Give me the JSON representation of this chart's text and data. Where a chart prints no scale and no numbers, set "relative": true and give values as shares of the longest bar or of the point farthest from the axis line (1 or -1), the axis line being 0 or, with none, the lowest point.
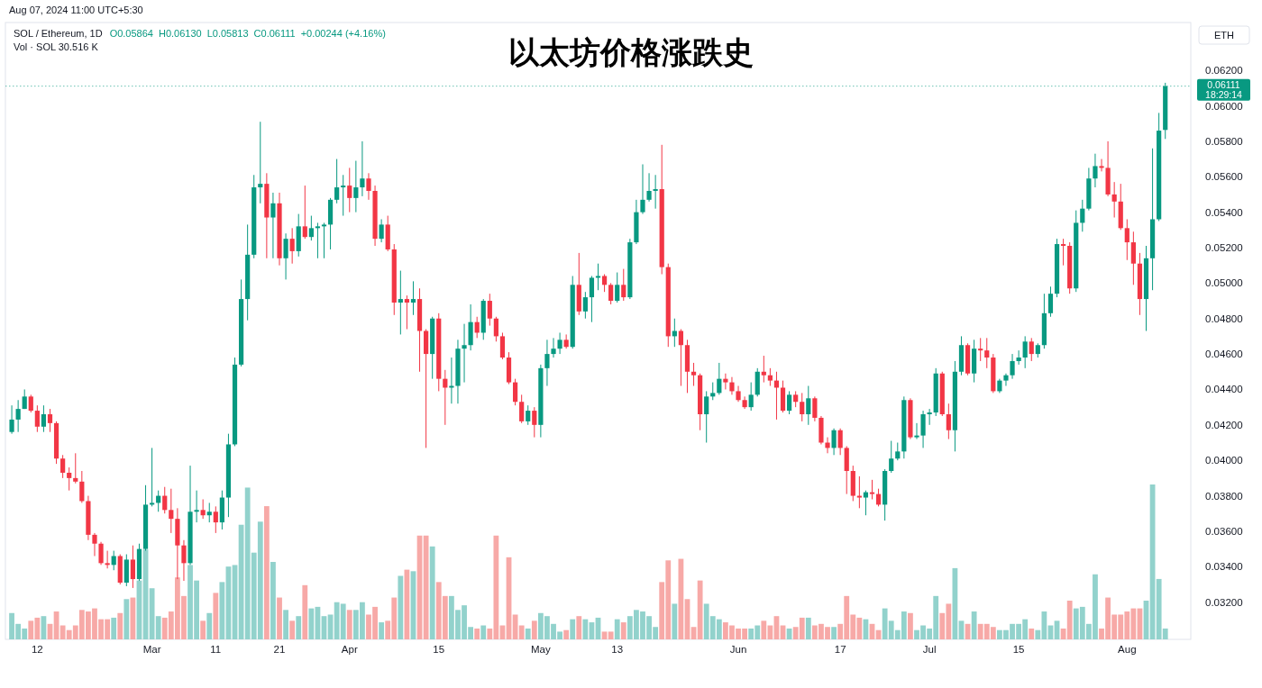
{
  "chart_data": [
    {
      "type": "candlestick",
      "title": "以太坊价格涨跌史",
      "subtitle": "SOL / Ethereum, 1D",
      "annotations": [
        "Aug 07, 2024 11:00 UTC+5:30",
        "O0.05864",
        "H0.06130",
        "L0.05813",
        "C0.06111",
        "+0.00244 (+4.16%)",
        "Vol · SOL 30.516 K",
        "ETH",
        "18:29:14"
      ],
      "x": [
        "2024-02-08",
        "2024-02-09",
        "2024-02-10",
        "2024-02-11",
        "2024-02-12",
        "2024-02-13",
        "2024-02-14",
        "2024-02-15",
        "2024-02-16",
        "2024-02-17",
        "2024-02-18",
        "2024-02-19",
        "2024-02-20",
        "2024-02-21",
        "2024-02-22",
        "2024-02-23",
        "2024-02-24",
        "2024-02-25",
        "2024-02-26",
        "2024-02-27",
        "2024-02-28",
        "2024-02-29",
        "2024-03-01",
        "2024-03-02",
        "2024-03-03",
        "2024-03-04",
        "2024-03-05",
        "2024-03-06",
        "2024-03-07",
        "2024-03-08",
        "2024-03-09",
        "2024-03-10",
        "2024-03-11",
        "2024-03-12",
        "2024-03-13",
        "2024-03-14",
        "2024-03-15",
        "2024-03-16",
        "2024-03-17",
        "2024-03-18",
        "2024-03-19",
        "2024-03-20",
        "2024-03-21",
        "2024-03-22",
        "2024-03-23",
        "2024-03-24",
        "2024-03-25",
        "2024-03-26",
        "2024-03-27",
        "2024-03-28",
        "2024-03-29",
        "2024-03-30",
        "2024-03-31",
        "2024-04-01",
        "2024-04-02",
        "2024-04-03",
        "2024-04-04",
        "2024-04-05",
        "2024-04-06",
        "2024-04-07",
        "2024-04-08",
        "2024-04-09",
        "2024-04-10",
        "2024-04-11",
        "2024-04-12",
        "2024-04-13",
        "2024-04-14",
        "2024-04-15",
        "2024-04-16",
        "2024-04-17",
        "2024-04-18",
        "2024-04-19",
        "2024-04-20",
        "2024-04-21",
        "2024-04-22",
        "2024-04-23",
        "2024-04-24",
        "2024-04-25",
        "2024-04-26",
        "2024-04-27",
        "2024-04-28",
        "2024-04-29",
        "2024-04-30",
        "2024-05-01",
        "2024-05-02",
        "2024-05-03",
        "2024-05-04",
        "2024-05-05",
        "2024-05-06",
        "2024-05-07",
        "2024-05-08",
        "2024-05-09",
        "2024-05-10",
        "2024-05-11",
        "2024-05-12",
        "2024-05-13",
        "2024-05-14",
        "2024-05-15",
        "2024-05-16",
        "2024-05-17",
        "2024-05-18",
        "2024-05-19",
        "2024-05-20",
        "2024-05-21",
        "2024-05-22",
        "2024-05-23",
        "2024-05-24",
        "2024-05-25",
        "2024-05-26",
        "2024-05-27",
        "2024-05-28",
        "2024-05-29",
        "2024-05-30",
        "2024-05-31",
        "2024-06-01",
        "2024-06-02",
        "2024-06-03",
        "2024-06-04",
        "2024-06-05",
        "2024-06-06",
        "2024-06-07",
        "2024-06-08",
        "2024-06-09",
        "2024-06-10",
        "2024-06-11",
        "2024-06-12",
        "2024-06-13",
        "2024-06-14",
        "2024-06-15",
        "2024-06-16",
        "2024-06-17",
        "2024-06-18",
        "2024-06-19",
        "2024-06-20",
        "2024-06-21",
        "2024-06-22",
        "2024-06-23",
        "2024-06-24",
        "2024-06-25",
        "2024-06-26",
        "2024-06-27",
        "2024-06-28",
        "2024-06-29",
        "2024-06-30",
        "2024-07-01",
        "2024-07-02",
        "2024-07-03",
        "2024-07-04",
        "2024-07-05",
        "2024-07-06",
        "2024-07-07",
        "2024-07-08",
        "2024-07-09",
        "2024-07-10",
        "2024-07-11",
        "2024-07-12",
        "2024-07-13",
        "2024-07-14",
        "2024-07-15",
        "2024-07-16",
        "2024-07-17",
        "2024-07-18",
        "2024-07-19",
        "2024-07-20",
        "2024-07-21",
        "2024-07-22",
        "2024-07-23",
        "2024-07-24",
        "2024-07-25",
        "2024-07-26",
        "2024-07-27",
        "2024-07-28",
        "2024-07-29",
        "2024-07-30",
        "2024-07-31",
        "2024-08-01",
        "2024-08-02",
        "2024-08-03",
        "2024-08-04",
        "2024-08-05",
        "2024-08-06",
        "2024-08-07"
      ],
      "ohlc": [
        [
          0.0416,
          0.0431,
          0.0415,
          0.0423
        ],
        [
          0.0423,
          0.0434,
          0.0416,
          0.0429
        ],
        [
          0.0429,
          0.044,
          0.0429,
          0.0436
        ],
        [
          0.0436,
          0.0437,
          0.0427,
          0.0428
        ],
        [
          0.0428,
          0.0431,
          0.0416,
          0.0419
        ],
        [
          0.0419,
          0.0431,
          0.0416,
          0.0426
        ],
        [
          0.0426,
          0.0429,
          0.0416,
          0.0421
        ],
        [
          0.0421,
          0.0422,
          0.0398,
          0.0401
        ],
        [
          0.0401,
          0.0403,
          0.039,
          0.0393
        ],
        [
          0.0393,
          0.0396,
          0.0383,
          0.039
        ],
        [
          0.039,
          0.0404,
          0.0387,
          0.0388
        ],
        [
          0.0388,
          0.0394,
          0.0376,
          0.0377
        ],
        [
          0.0377,
          0.038,
          0.0355,
          0.0358
        ],
        [
          0.0358,
          0.0359,
          0.0346,
          0.0353
        ],
        [
          0.0353,
          0.0354,
          0.0341,
          0.0342
        ],
        [
          0.0342,
          0.0349,
          0.0339,
          0.0341
        ],
        [
          0.0341,
          0.0349,
          0.0338,
          0.0346
        ],
        [
          0.0346,
          0.0347,
          0.033,
          0.0331
        ],
        [
          0.0331,
          0.0347,
          0.0329,
          0.0344
        ],
        [
          0.0344,
          0.0352,
          0.0328,
          0.0333
        ],
        [
          0.0333,
          0.0353,
          0.0332,
          0.035
        ],
        [
          0.035,
          0.0386,
          0.0349,
          0.0375
        ],
        [
          0.0375,
          0.0407,
          0.0374,
          0.0376
        ],
        [
          0.0376,
          0.0383,
          0.0371,
          0.038
        ],
        [
          0.038,
          0.0385,
          0.037,
          0.0372
        ],
        [
          0.0372,
          0.0384,
          0.0359,
          0.0367
        ],
        [
          0.0367,
          0.0373,
          0.0333,
          0.0352
        ],
        [
          0.0352,
          0.0355,
          0.0332,
          0.0342
        ],
        [
          0.0342,
          0.0397,
          0.0341,
          0.0371
        ],
        [
          0.0371,
          0.0383,
          0.0365,
          0.0372
        ],
        [
          0.0372,
          0.0378,
          0.0367,
          0.0369
        ],
        [
          0.0369,
          0.0376,
          0.0365,
          0.0371
        ],
        [
          0.0371,
          0.0374,
          0.0359,
          0.0365
        ],
        [
          0.0365,
          0.0383,
          0.0361,
          0.0379
        ],
        [
          0.0379,
          0.0415,
          0.0368,
          0.0409
        ],
        [
          0.0409,
          0.0458,
          0.0408,
          0.0454
        ],
        [
          0.0454,
          0.0502,
          0.0453,
          0.0491
        ],
        [
          0.0491,
          0.0533,
          0.0479,
          0.0516
        ],
        [
          0.0516,
          0.0561,
          0.0514,
          0.0554
        ],
        [
          0.0554,
          0.0591,
          0.0545,
          0.0556
        ],
        [
          0.0556,
          0.0562,
          0.0514,
          0.0537
        ],
        [
          0.0537,
          0.0551,
          0.0514,
          0.0545
        ],
        [
          0.0545,
          0.0551,
          0.051,
          0.0514
        ],
        [
          0.0514,
          0.0528,
          0.0502,
          0.0525
        ],
        [
          0.0525,
          0.0531,
          0.0511,
          0.0518
        ],
        [
          0.0518,
          0.0539,
          0.0515,
          0.0532
        ],
        [
          0.0532,
          0.0555,
          0.0525,
          0.0526
        ],
        [
          0.0526,
          0.0538,
          0.0524,
          0.0531
        ],
        [
          0.0531,
          0.0534,
          0.0514,
          0.0532
        ],
        [
          0.0532,
          0.0534,
          0.0514,
          0.0533
        ],
        [
          0.0533,
          0.0548,
          0.0519,
          0.0547
        ],
        [
          0.0547,
          0.057,
          0.0545,
          0.0554
        ],
        [
          0.0554,
          0.0561,
          0.0538,
          0.0555
        ],
        [
          0.0555,
          0.0565,
          0.054,
          0.0548
        ],
        [
          0.0548,
          0.0569,
          0.054,
          0.0554
        ],
        [
          0.0554,
          0.058,
          0.0549,
          0.0559
        ],
        [
          0.0559,
          0.0562,
          0.0547,
          0.0552
        ],
        [
          0.0552,
          0.0555,
          0.0521,
          0.0525
        ],
        [
          0.0525,
          0.0536,
          0.0523,
          0.0533
        ],
        [
          0.0533,
          0.0538,
          0.0518,
          0.0519
        ],
        [
          0.0519,
          0.0522,
          0.0482,
          0.0489
        ],
        [
          0.0489,
          0.0507,
          0.0471,
          0.0491
        ],
        [
          0.0491,
          0.0493,
          0.0474,
          0.0489
        ],
        [
          0.0489,
          0.0501,
          0.0482,
          0.0491
        ],
        [
          0.0491,
          0.0497,
          0.045,
          0.0473
        ],
        [
          0.0473,
          0.0474,
          0.0407,
          0.046
        ],
        [
          0.046,
          0.0481,
          0.0446,
          0.048
        ],
        [
          0.048,
          0.0483,
          0.0439,
          0.0446
        ],
        [
          0.0446,
          0.0451,
          0.042,
          0.0441
        ],
        [
          0.0441,
          0.0458,
          0.0432,
          0.0442
        ],
        [
          0.0442,
          0.0468,
          0.0432,
          0.0463
        ],
        [
          0.0463,
          0.0477,
          0.0444,
          0.0465
        ],
        [
          0.0465,
          0.0488,
          0.0462,
          0.0478
        ],
        [
          0.0478,
          0.0481,
          0.0469,
          0.0472
        ],
        [
          0.0472,
          0.0491,
          0.0468,
          0.049
        ],
        [
          0.049,
          0.0494,
          0.0476,
          0.048
        ],
        [
          0.048,
          0.0481,
          0.0467,
          0.047
        ],
        [
          0.047,
          0.0472,
          0.0457,
          0.0458
        ],
        [
          0.0458,
          0.0461,
          0.0443,
          0.0444
        ],
        [
          0.0444,
          0.0446,
          0.0431,
          0.0433
        ],
        [
          0.0433,
          0.0437,
          0.0421,
          0.0422
        ],
        [
          0.0422,
          0.0431,
          0.042,
          0.0428
        ],
        [
          0.0428,
          0.043,
          0.0413,
          0.042
        ],
        [
          0.042,
          0.0454,
          0.0413,
          0.0452
        ],
        [
          0.0452,
          0.0468,
          0.0442,
          0.046
        ],
        [
          0.046,
          0.0469,
          0.0458,
          0.0463
        ],
        [
          0.0463,
          0.0472,
          0.046,
          0.0468
        ],
        [
          0.0468,
          0.0471,
          0.0463,
          0.0464
        ],
        [
          0.0464,
          0.0504,
          0.0463,
          0.0499
        ],
        [
          0.0499,
          0.0517,
          0.0482,
          0.0484
        ],
        [
          0.0484,
          0.0495,
          0.048,
          0.0492
        ],
        [
          0.0492,
          0.0504,
          0.0478,
          0.0503
        ],
        [
          0.0503,
          0.0511,
          0.0496,
          0.0504
        ],
        [
          0.0504,
          0.0505,
          0.0495,
          0.0499
        ],
        [
          0.0499,
          0.05,
          0.0488,
          0.049
        ],
        [
          0.049,
          0.0506,
          0.0489,
          0.0499
        ],
        [
          0.0499,
          0.0508,
          0.049,
          0.0492
        ],
        [
          0.0492,
          0.0525,
          0.0491,
          0.0523
        ],
        [
          0.0523,
          0.0547,
          0.0522,
          0.054
        ],
        [
          0.054,
          0.0567,
          0.0539,
          0.0547
        ],
        [
          0.0547,
          0.0562,
          0.0546,
          0.0552
        ],
        [
          0.0552,
          0.0561,
          0.0542,
          0.0553
        ],
        [
          0.0553,
          0.0578,
          0.0505,
          0.0509
        ],
        [
          0.0509,
          0.0511,
          0.0464,
          0.047
        ],
        [
          0.047,
          0.048,
          0.0464,
          0.0473
        ],
        [
          0.0473,
          0.0474,
          0.0442,
          0.0465
        ],
        [
          0.0465,
          0.0468,
          0.0438,
          0.045
        ],
        [
          0.045,
          0.0455,
          0.0442,
          0.0448
        ],
        [
          0.0448,
          0.0449,
          0.0417,
          0.0426
        ],
        [
          0.0426,
          0.0439,
          0.041,
          0.0436
        ],
        [
          0.0436,
          0.0444,
          0.0434,
          0.0438
        ],
        [
          0.0438,
          0.0455,
          0.0437,
          0.0446
        ],
        [
          0.0446,
          0.0449,
          0.044,
          0.0444
        ],
        [
          0.0444,
          0.0447,
          0.0437,
          0.0439
        ],
        [
          0.0439,
          0.0442,
          0.0433,
          0.0434
        ],
        [
          0.0434,
          0.0436,
          0.0429,
          0.043
        ],
        [
          0.043,
          0.0444,
          0.0428,
          0.0437
        ],
        [
          0.0437,
          0.0452,
          0.0436,
          0.045
        ],
        [
          0.045,
          0.0459,
          0.0444,
          0.0448
        ],
        [
          0.0448,
          0.0452,
          0.0442,
          0.0445
        ],
        [
          0.0445,
          0.045,
          0.0423,
          0.0441
        ],
        [
          0.0441,
          0.0445,
          0.0427,
          0.0428
        ],
        [
          0.0428,
          0.0439,
          0.0426,
          0.0437
        ],
        [
          0.0437,
          0.0439,
          0.043,
          0.0433
        ],
        [
          0.0433,
          0.0438,
          0.0422,
          0.0426
        ],
        [
          0.0426,
          0.0442,
          0.042,
          0.0435
        ],
        [
          0.0435,
          0.0436,
          0.0422,
          0.0424
        ],
        [
          0.0424,
          0.0425,
          0.0409,
          0.041
        ],
        [
          0.041,
          0.0413,
          0.0404,
          0.0407
        ],
        [
          0.0407,
          0.0418,
          0.0403,
          0.0417
        ],
        [
          0.0417,
          0.0418,
          0.0403,
          0.0407
        ],
        [
          0.0407,
          0.0408,
          0.0381,
          0.0394
        ],
        [
          0.0394,
          0.0397,
          0.0377,
          0.038
        ],
        [
          0.038,
          0.0391,
          0.0373,
          0.0379
        ],
        [
          0.0379,
          0.0383,
          0.0369,
          0.0382
        ],
        [
          0.0382,
          0.0389,
          0.0378,
          0.0381
        ],
        [
          0.0381,
          0.0384,
          0.0374,
          0.0375
        ],
        [
          0.0375,
          0.0395,
          0.0366,
          0.0394
        ],
        [
          0.0394,
          0.0411,
          0.0393,
          0.0401
        ],
        [
          0.0401,
          0.041,
          0.04,
          0.0405
        ],
        [
          0.0405,
          0.0436,
          0.0401,
          0.0434
        ],
        [
          0.0434,
          0.0435,
          0.0412,
          0.0413
        ],
        [
          0.0413,
          0.0421,
          0.0412,
          0.0414
        ],
        [
          0.0414,
          0.0428,
          0.0407,
          0.0426
        ],
        [
          0.0426,
          0.0429,
          0.042,
          0.0427
        ],
        [
          0.0427,
          0.0452,
          0.0425,
          0.0449
        ],
        [
          0.0449,
          0.045,
          0.0425,
          0.0426
        ],
        [
          0.0426,
          0.0432,
          0.0412,
          0.0417
        ],
        [
          0.0417,
          0.0456,
          0.0405,
          0.045
        ],
        [
          0.045,
          0.047,
          0.0448,
          0.0465
        ],
        [
          0.0465,
          0.0466,
          0.0448,
          0.0449
        ],
        [
          0.0449,
          0.0468,
          0.0444,
          0.0463
        ],
        [
          0.0463,
          0.0469,
          0.0456,
          0.0462
        ],
        [
          0.0462,
          0.0469,
          0.0452,
          0.0458
        ],
        [
          0.0458,
          0.046,
          0.0438,
          0.0439
        ],
        [
          0.0439,
          0.0446,
          0.0438,
          0.0445
        ],
        [
          0.0445,
          0.0449,
          0.0442,
          0.0448
        ],
        [
          0.0448,
          0.046,
          0.0446,
          0.0456
        ],
        [
          0.0456,
          0.0462,
          0.0454,
          0.0458
        ],
        [
          0.0458,
          0.047,
          0.0452,
          0.0467
        ],
        [
          0.0467,
          0.0469,
          0.0456,
          0.046
        ],
        [
          0.046,
          0.0466,
          0.0458,
          0.0465
        ],
        [
          0.0465,
          0.0494,
          0.0463,
          0.0483
        ],
        [
          0.0483,
          0.0498,
          0.0481,
          0.0494
        ],
        [
          0.0494,
          0.0525,
          0.0492,
          0.0522
        ],
        [
          0.0522,
          0.0525,
          0.051,
          0.0521
        ],
        [
          0.0521,
          0.0523,
          0.0494,
          0.0497
        ],
        [
          0.0497,
          0.0541,
          0.0495,
          0.0534
        ],
        [
          0.0534,
          0.0547,
          0.0529,
          0.0542
        ],
        [
          0.0542,
          0.0565,
          0.0541,
          0.0559
        ],
        [
          0.0559,
          0.0573,
          0.0554,
          0.0566
        ],
        [
          0.0566,
          0.057,
          0.0563,
          0.0565
        ],
        [
          0.0565,
          0.058,
          0.0549,
          0.055
        ],
        [
          0.055,
          0.0557,
          0.0537,
          0.0546
        ],
        [
          0.0546,
          0.0556,
          0.053,
          0.0531
        ],
        [
          0.0531,
          0.0536,
          0.0513,
          0.0523
        ],
        [
          0.0523,
          0.0529,
          0.0499,
          0.0511
        ],
        [
          0.0511,
          0.0517,
          0.0482,
          0.0491
        ],
        [
          0.0491,
          0.0521,
          0.0473,
          0.0514
        ],
        [
          0.0514,
          0.0576,
          0.0496,
          0.0536
        ],
        [
          0.0536,
          0.0596,
          0.0535,
          0.0586
        ],
        [
          0.05864,
          0.0613,
          0.05813,
          0.06111
        ]
      ],
      "colors": [
        "#089981",
        "#089981",
        "#089981",
        "#f23645",
        "#f23645",
        "#089981",
        "#f23645",
        "#f23645",
        "#f23645",
        "#f23645",
        "#f23645",
        "#f23645",
        "#f23645",
        "#f23645",
        "#f23645",
        "#f23645",
        "#089981",
        "#f23645",
        "#089981",
        "#f23645",
        "#089981",
        "#089981",
        "#089981",
        "#089981",
        "#f23645",
        "#f23645",
        "#f23645",
        "#f23645",
        "#089981",
        "#089981",
        "#f23645",
        "#089981",
        "#f23645",
        "#089981",
        "#089981",
        "#089981",
        "#089981",
        "#089981",
        "#089981",
        "#089981",
        "#f23645",
        "#089981",
        "#f23645",
        "#089981",
        "#f23645",
        "#089981",
        "#f23645",
        "#089981",
        "#089981",
        "#089981",
        "#089981",
        "#089981",
        "#089981",
        "#f23645",
        "#089981",
        "#089981",
        "#f23645",
        "#f23645",
        "#089981",
        "#f23645",
        "#f23645",
        "#089981",
        "#f23645",
        "#089981",
        "#f23645",
        "#f23645",
        "#089981",
        "#f23645",
        "#f23645",
        "#089981",
        "#089981",
        "#089981",
        "#089981",
        "#f23645",
        "#089981",
        "#f23645",
        "#f23645",
        "#f23645",
        "#f23645",
        "#f23645",
        "#f23645",
        "#089981",
        "#f23645",
        "#089981",
        "#089981",
        "#089981",
        "#089981",
        "#f23645",
        "#089981",
        "#f23645",
        "#089981",
        "#089981",
        "#089981",
        "#f23645",
        "#f23645",
        "#089981",
        "#f23645",
        "#089981",
        "#089981",
        "#089981",
        "#089981",
        "#089981",
        "#f23645",
        "#f23645",
        "#089981",
        "#f23645",
        "#f23645",
        "#f23645",
        "#f23645",
        "#089981",
        "#089981",
        "#089981",
        "#f23645",
        "#f23645",
        "#f23645",
        "#f23645",
        "#089981",
        "#089981",
        "#f23645",
        "#f23645",
        "#f23645",
        "#f23645",
        "#089981",
        "#f23645",
        "#f23645",
        "#089981",
        "#f23645",
        "#f23645",
        "#f23645",
        "#089981",
        "#f23645",
        "#f23645",
        "#f23645",
        "#f23645",
        "#089981",
        "#f23645",
        "#f23645",
        "#089981",
        "#089981",
        "#089981",
        "#089981",
        "#f23645",
        "#089981",
        "#089981",
        "#089981",
        "#089981",
        "#f23645",
        "#f23645",
        "#089981",
        "#089981",
        "#f23645",
        "#089981",
        "#f23645",
        "#f23645",
        "#f23645",
        "#089981",
        "#089981",
        "#089981",
        "#089981",
        "#089981",
        "#f23645",
        "#089981",
        "#089981",
        "#089981",
        "#089981",
        "#f23645",
        "#f23645",
        "#089981",
        "#089981",
        "#089981",
        "#089981",
        "#f23645",
        "#f23645",
        "#f23645",
        "#f23645",
        "#f23645",
        "#f23645",
        "#f23645",
        "#089981",
        "#089981",
        "#089981",
        "#089981"
      ],
      "xlim": [
        "2024-02-07",
        "2024-08-11"
      ],
      "xticks": [
        {
          "value": "2024-02-12",
          "label": "12"
        },
        {
          "value": "2024-03-01",
          "label": "Mar"
        },
        {
          "value": "2024-03-11",
          "label": "11"
        },
        {
          "value": "2024-03-21",
          "label": "21"
        },
        {
          "value": "2024-04-01",
          "label": "Apr"
        },
        {
          "value": "2024-04-15",
          "label": "15"
        },
        {
          "value": "2024-05-01",
          "label": "May"
        },
        {
          "value": "2024-05-13",
          "label": "13"
        },
        {
          "value": "2024-06-01",
          "label": "Jun"
        },
        {
          "value": "2024-06-17",
          "label": "17"
        },
        {
          "value": "2024-07-01",
          "label": "Jul"
        },
        {
          "value": "2024-07-15",
          "label": "15"
        },
        {
          "value": "2024-08-01",
          "label": "Aug"
        }
      ],
      "ylim": [
        0.0299,
        0.0647
      ],
      "yticks": [
        {
          "value": 0.032,
          "label": "0.03200"
        },
        {
          "value": 0.034,
          "label": "0.03400"
        },
        {
          "value": 0.036,
          "label": "0.03600"
        },
        {
          "value": 0.038,
          "label": "0.03800"
        },
        {
          "value": 0.04,
          "label": "0.04000"
        },
        {
          "value": 0.042,
          "label": "0.04200"
        },
        {
          "value": 0.044,
          "label": "0.04400"
        },
        {
          "value": 0.046,
          "label": "0.04600"
        },
        {
          "value": 0.048,
          "label": "0.04800"
        },
        {
          "value": 0.05,
          "label": "0.05000"
        },
        {
          "value": 0.052,
          "label": "0.05200"
        },
        {
          "value": 0.054,
          "label": "0.05400"
        },
        {
          "value": 0.056,
          "label": "0.05600"
        },
        {
          "value": 0.058,
          "label": "0.05800"
        },
        {
          "value": 0.06,
          "label": "0.06000"
        },
        {
          "value": 0.062,
          "label": "0.06200"
        }
      ],
      "ref_lines": [
        {
          "axis": "y",
          "value": 0.06111,
          "label": "0.06111",
          "color": "#089981",
          "line_style": "dotted"
        }
      ]
    },
    {
      "type": "bar",
      "relative": true,
      "xlim": [
        "2024-02-07",
        "2024-08-11"
      ],
      "values": [
        0.17,
        0.1,
        0.07,
        0.12,
        0.14,
        0.15,
        0.1,
        0.18,
        0.09,
        0.06,
        0.09,
        0.19,
        0.18,
        0.2,
        0.13,
        0.13,
        0.14,
        0.17,
        0.26,
        0.27,
        0.38,
        0.58,
        0.33,
        0.15,
        0.14,
        0.18,
        0.4,
        0.28,
        0.48,
        0.38,
        0.12,
        0.17,
        0.3,
        0.37,
        0.47,
        0.48,
        0.74,
        0.98,
        0.56,
        0.76,
        0.86,
        0.5,
        0.27,
        0.19,
        0.12,
        0.15,
        0.35,
        0.2,
        0.21,
        0.15,
        0.16,
        0.24,
        0.23,
        0.19,
        0.19,
        0.24,
        0.16,
        0.21,
        0.11,
        0.12,
        0.27,
        0.41,
        0.45,
        0.44,
        0.67,
        0.67,
        0.6,
        0.37,
        0.28,
        0.28,
        0.19,
        0.22,
        0.08,
        0.07,
        0.09,
        0.07,
        0.67,
        0.09,
        0.53,
        0.16,
        0.09,
        0.07,
        0.12,
        0.17,
        0.15,
        0.1,
        0.05,
        0.06,
        0.13,
        0.15,
        0.13,
        0.11,
        0.14,
        0.05,
        0.05,
        0.13,
        0.11,
        0.15,
        0.19,
        0.18,
        0.15,
        0.08,
        0.37,
        0.51,
        0.23,
        0.52,
        0.26,
        0.08,
        0.38,
        0.23,
        0.15,
        0.13,
        0.11,
        0.09,
        0.07,
        0.07,
        0.07,
        0.09,
        0.12,
        0.09,
        0.15,
        0.09,
        0.07,
        0.08,
        0.14,
        0.14,
        0.09,
        0.1,
        0.08,
        0.08,
        0.1,
        0.28,
        0.16,
        0.14,
        0.13,
        0.1,
        0.06,
        0.2,
        0.12,
        0.06,
        0.18,
        0.17,
        0.06,
        0.09,
        0.07,
        0.28,
        0.17,
        0.23,
        0.46,
        0.12,
        0.1,
        0.18,
        0.1,
        0.1,
        0.08,
        0.06,
        0.06,
        0.1,
        0.1,
        0.13,
        0.07,
        0.06,
        0.18,
        0.09,
        0.12,
        0.07,
        0.25,
        0.2,
        0.21,
        0.1,
        0.42,
        0.07,
        0.27,
        0.16,
        0.16,
        0.18,
        0.2,
        0.2,
        0.25,
        1,
        0.39,
        0.07
      ],
      "colors": [
        "#92d2cc",
        "#92d2cc",
        "#92d2cc",
        "#f7a9a7",
        "#f7a9a7",
        "#92d2cc",
        "#f7a9a7",
        "#f7a9a7",
        "#f7a9a7",
        "#f7a9a7",
        "#f7a9a7",
        "#f7a9a7",
        "#f7a9a7",
        "#f7a9a7",
        "#f7a9a7",
        "#f7a9a7",
        "#92d2cc",
        "#f7a9a7",
        "#92d2cc",
        "#f7a9a7",
        "#92d2cc",
        "#92d2cc",
        "#92d2cc",
        "#92d2cc",
        "#f7a9a7",
        "#f7a9a7",
        "#f7a9a7",
        "#f7a9a7",
        "#92d2cc",
        "#92d2cc",
        "#f7a9a7",
        "#92d2cc",
        "#f7a9a7",
        "#92d2cc",
        "#92d2cc",
        "#92d2cc",
        "#92d2cc",
        "#92d2cc",
        "#92d2cc",
        "#92d2cc",
        "#f7a9a7",
        "#92d2cc",
        "#f7a9a7",
        "#92d2cc",
        "#f7a9a7",
        "#92d2cc",
        "#f7a9a7",
        "#92d2cc",
        "#92d2cc",
        "#92d2cc",
        "#92d2cc",
        "#92d2cc",
        "#92d2cc",
        "#f7a9a7",
        "#92d2cc",
        "#92d2cc",
        "#f7a9a7",
        "#f7a9a7",
        "#92d2cc",
        "#f7a9a7",
        "#f7a9a7",
        "#92d2cc",
        "#f7a9a7",
        "#92d2cc",
        "#f7a9a7",
        "#f7a9a7",
        "#92d2cc",
        "#f7a9a7",
        "#f7a9a7",
        "#92d2cc",
        "#92d2cc",
        "#92d2cc",
        "#92d2cc",
        "#f7a9a7",
        "#92d2cc",
        "#f7a9a7",
        "#f7a9a7",
        "#f7a9a7",
        "#f7a9a7",
        "#f7a9a7",
        "#f7a9a7",
        "#92d2cc",
        "#f7a9a7",
        "#92d2cc",
        "#92d2cc",
        "#92d2cc",
        "#92d2cc",
        "#f7a9a7",
        "#92d2cc",
        "#f7a9a7",
        "#92d2cc",
        "#92d2cc",
        "#92d2cc",
        "#f7a9a7",
        "#f7a9a7",
        "#92d2cc",
        "#f7a9a7",
        "#92d2cc",
        "#92d2cc",
        "#92d2cc",
        "#92d2cc",
        "#92d2cc",
        "#f7a9a7",
        "#f7a9a7",
        "#92d2cc",
        "#f7a9a7",
        "#f7a9a7",
        "#f7a9a7",
        "#f7a9a7",
        "#92d2cc",
        "#92d2cc",
        "#92d2cc",
        "#f7a9a7",
        "#f7a9a7",
        "#f7a9a7",
        "#f7a9a7",
        "#92d2cc",
        "#92d2cc",
        "#f7a9a7",
        "#f7a9a7",
        "#f7a9a7",
        "#f7a9a7",
        "#92d2cc",
        "#f7a9a7",
        "#f7a9a7",
        "#92d2cc",
        "#f7a9a7",
        "#f7a9a7",
        "#f7a9a7",
        "#92d2cc",
        "#f7a9a7",
        "#f7a9a7",
        "#f7a9a7",
        "#f7a9a7",
        "#92d2cc",
        "#f7a9a7",
        "#f7a9a7",
        "#92d2cc",
        "#92d2cc",
        "#92d2cc",
        "#92d2cc",
        "#f7a9a7",
        "#92d2cc",
        "#92d2cc",
        "#92d2cc",
        "#92d2cc",
        "#f7a9a7",
        "#f7a9a7",
        "#92d2cc",
        "#92d2cc",
        "#f7a9a7",
        "#92d2cc",
        "#f7a9a7",
        "#f7a9a7",
        "#f7a9a7",
        "#92d2cc",
        "#92d2cc",
        "#92d2cc",
        "#92d2cc",
        "#92d2cc",
        "#f7a9a7",
        "#92d2cc",
        "#92d2cc",
        "#92d2cc",
        "#92d2cc",
        "#f7a9a7",
        "#f7a9a7",
        "#92d2cc",
        "#92d2cc",
        "#92d2cc",
        "#92d2cc",
        "#f7a9a7",
        "#f7a9a7",
        "#f7a9a7",
        "#f7a9a7",
        "#f7a9a7",
        "#f7a9a7",
        "#f7a9a7",
        "#92d2cc",
        "#92d2cc",
        "#92d2cc",
        "#92d2cc"
      ],
      "x": [
        "2024-02-08",
        "2024-02-09",
        "2024-02-10",
        "2024-02-11",
        "2024-02-12",
        "2024-02-13",
        "2024-02-14",
        "2024-02-15",
        "2024-02-16",
        "2024-02-17",
        "2024-02-18",
        "2024-02-19",
        "2024-02-20",
        "2024-02-21",
        "2024-02-22",
        "2024-02-23",
        "2024-02-24",
        "2024-02-25",
        "2024-02-26",
        "2024-02-27",
        "2024-02-28",
        "2024-02-29",
        "2024-03-01",
        "2024-03-02",
        "2024-03-03",
        "2024-03-04",
        "2024-03-05",
        "2024-03-06",
        "2024-03-07",
        "2024-03-08",
        "2024-03-09",
        "2024-03-10",
        "2024-03-11",
        "2024-03-12",
        "2024-03-13",
        "2024-03-14",
        "2024-03-15",
        "2024-03-16",
        "2024-03-17",
        "2024-03-18",
        "2024-03-19",
        "2024-03-20",
        "2024-03-21",
        "2024-03-22",
        "2024-03-23",
        "2024-03-24",
        "2024-03-25",
        "2024-03-26",
        "2024-03-27",
        "2024-03-28",
        "2024-03-29",
        "2024-03-30",
        "2024-03-31",
        "2024-04-01",
        "2024-04-02",
        "2024-04-03",
        "2024-04-04",
        "2024-04-05",
        "2024-04-06",
        "2024-04-07",
        "2024-04-08",
        "2024-04-09",
        "2024-04-10",
        "2024-04-11",
        "2024-04-12",
        "2024-04-13",
        "2024-04-14",
        "2024-04-15",
        "2024-04-16",
        "2024-04-17",
        "2024-04-18",
        "2024-04-19",
        "2024-04-20",
        "2024-04-21",
        "2024-04-22",
        "2024-04-23",
        "2024-04-24",
        "2024-04-25",
        "2024-04-26",
        "2024-04-27",
        "2024-04-28",
        "2024-04-29",
        "2024-04-30",
        "2024-05-01",
        "2024-05-02",
        "2024-05-03",
        "2024-05-04",
        "2024-05-05",
        "2024-05-06",
        "2024-05-07",
        "2024-05-08",
        "2024-05-09",
        "2024-05-10",
        "2024-05-11",
        "2024-05-12",
        "2024-05-13",
        "2024-05-14",
        "2024-05-15",
        "2024-05-16",
        "2024-05-17",
        "2024-05-18",
        "2024-05-19",
        "2024-05-20",
        "2024-05-21",
        "2024-05-22",
        "2024-05-23",
        "2024-05-24",
        "2024-05-25",
        "2024-05-26",
        "2024-05-27",
        "2024-05-28",
        "2024-05-29",
        "2024-05-30",
        "2024-05-31",
        "2024-06-01",
        "2024-06-02",
        "2024-06-03",
        "2024-06-04",
        "2024-06-05",
        "2024-06-06",
        "2024-06-07",
        "2024-06-08",
        "2024-06-09",
        "2024-06-10",
        "2024-06-11",
        "2024-06-12",
        "2024-06-13",
        "2024-06-14",
        "2024-06-15",
        "2024-06-16",
        "2024-06-17",
        "2024-06-18",
        "2024-06-19",
        "2024-06-20",
        "2024-06-21",
        "2024-06-22",
        "2024-06-23",
        "2024-06-24",
        "2024-06-25",
        "2024-06-26",
        "2024-06-27",
        "2024-06-28",
        "2024-06-29",
        "2024-06-30",
        "2024-07-01",
        "2024-07-02",
        "2024-07-03",
        "2024-07-04",
        "2024-07-05",
        "2024-07-06",
        "2024-07-07",
        "2024-07-08",
        "2024-07-09",
        "2024-07-10",
        "2024-07-11",
        "2024-07-12",
        "2024-07-13",
        "2024-07-14",
        "2024-07-15",
        "2024-07-16",
        "2024-07-17",
        "2024-07-18",
        "2024-07-19",
        "2024-07-20",
        "2024-07-21",
        "2024-07-22",
        "2024-07-23",
        "2024-07-24",
        "2024-07-25",
        "2024-07-26",
        "2024-07-27",
        "2024-07-28",
        "2024-07-29",
        "2024-07-30",
        "2024-07-31",
        "2024-08-01",
        "2024-08-02",
        "2024-08-03",
        "2024-08-04",
        "2024-08-05",
        "2024-08-06",
        "2024-08-07"
      ]
    }
  ]
}
